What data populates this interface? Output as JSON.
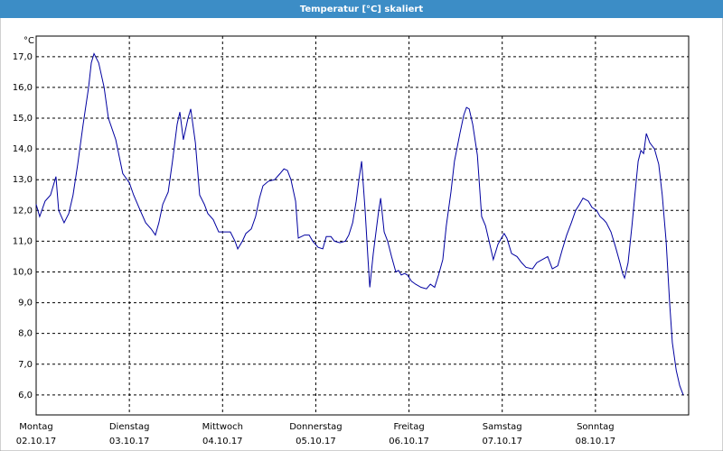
{
  "chart_data": {
    "type": "line",
    "title": "Temperatur [°C] skaliert",
    "y_label": "°C",
    "xlim": [
      0,
      168
    ],
    "ylim": [
      5.35,
      17.67
    ],
    "yticks": [
      {
        "value": 6,
        "label": "6,0"
      },
      {
        "value": 7,
        "label": "7,0"
      },
      {
        "value": 8,
        "label": "8,0"
      },
      {
        "value": 9,
        "label": "9,0"
      },
      {
        "value": 10,
        "label": "10,0"
      },
      {
        "value": 11,
        "label": "11,0"
      },
      {
        "value": 12,
        "label": "12,0"
      },
      {
        "value": 13,
        "label": "13,0"
      },
      {
        "value": 14,
        "label": "14,0"
      },
      {
        "value": 15,
        "label": "15,0"
      },
      {
        "value": 16,
        "label": "16,0"
      },
      {
        "value": 17,
        "label": "17,0"
      }
    ],
    "xticks": [
      {
        "value": 0,
        "label": "Montag"
      },
      {
        "value": 24,
        "label": "Dienstag"
      },
      {
        "value": 48,
        "label": "Mittwoch"
      },
      {
        "value": 72,
        "label": "Donnerstag"
      },
      {
        "value": 96,
        "label": "Freitag"
      },
      {
        "value": 120,
        "label": "Samstag"
      },
      {
        "value": 144,
        "label": "Sonntag"
      }
    ],
    "xtick_dates": [
      "02.10.17",
      "03.10.17",
      "04.10.17",
      "05.10.17",
      "06.10.17",
      "07.10.17",
      "08.10.17"
    ],
    "grid": true,
    "x": [
      0,
      0.9,
      2.3,
      3.7,
      5.1,
      5.8,
      7.2,
      8.4,
      9.5,
      10.7,
      12.1,
      13.5,
      14.2,
      14.9,
      16.1,
      17.5,
      18.6,
      20.5,
      22.3,
      24.0,
      25.1,
      26.8,
      28.2,
      29.6,
      30.7,
      31.6,
      32.6,
      34.0,
      35.1,
      36.3,
      37.0,
      37.9,
      39.1,
      39.8,
      41.0,
      42.1,
      43.3,
      44.2,
      45.6,
      47.0,
      48.2,
      50.0,
      51.2,
      51.9,
      53.1,
      54.0,
      55.4,
      56.5,
      57.5,
      58.4,
      59.8,
      61.4,
      62.8,
      63.8,
      64.7,
      65.6,
      66.8,
      67.5,
      69.1,
      70.3,
      71.2,
      72.6,
      73.8,
      74.7,
      75.9,
      76.8,
      78.2,
      79.6,
      80.5,
      81.5,
      82.4,
      83.1,
      83.8,
      84.7,
      85.4,
      85.9,
      86.8,
      87.7,
      88.2,
      88.7,
      89.6,
      90.5,
      91.5,
      92.6,
      93.3,
      94.0,
      94.9,
      95.6,
      96.6,
      97.7,
      99.1,
      100.5,
      101.5,
      102.6,
      103.6,
      104.7,
      105.6,
      106.8,
      107.7,
      109.1,
      110.1,
      110.8,
      111.5,
      112.4,
      113.6,
      114.7,
      115.7,
      116.8,
      117.7,
      118.9,
      119.8,
      120.5,
      121.2,
      122.4,
      123.8,
      125.0,
      126.1,
      127.8,
      128.9,
      130.3,
      131.7,
      132.9,
      134.3,
      135.4,
      136.6,
      137.8,
      138.9,
      139.9,
      140.8,
      142.2,
      143.1,
      144.3,
      145.2,
      146.1,
      146.8,
      148.0,
      149.2,
      150.3,
      151.0,
      151.5,
      152.4,
      153.4,
      154.3,
      155.0,
      155.7,
      156.4,
      157.1,
      158.0,
      159.2,
      160.3,
      161.2,
      162.2,
      163.1,
      163.8,
      164.8,
      165.7,
      166.6
    ],
    "series": [
      {
        "color": "#0000a0",
        "values": [
          12.2,
          11.8,
          12.3,
          12.5,
          13.1,
          12.0,
          11.6,
          11.9,
          12.5,
          13.5,
          14.8,
          16.0,
          16.8,
          17.1,
          16.8,
          16.0,
          15.0,
          14.3,
          13.2,
          12.9,
          12.5,
          12.0,
          11.6,
          11.4,
          11.2,
          11.6,
          12.2,
          12.6,
          13.6,
          14.8,
          15.2,
          14.3,
          15.0,
          15.3,
          14.2,
          12.5,
          12.2,
          11.9,
          11.7,
          11.3,
          11.3,
          11.3,
          11.0,
          10.75,
          11.0,
          11.25,
          11.4,
          11.8,
          12.4,
          12.8,
          12.95,
          13.0,
          13.2,
          13.35,
          13.3,
          13.0,
          12.3,
          11.1,
          11.2,
          11.2,
          11.0,
          10.8,
          10.75,
          11.15,
          11.15,
          11.0,
          10.95,
          11.0,
          11.2,
          11.6,
          12.3,
          13.0,
          13.6,
          12.0,
          10.5,
          9.5,
          10.6,
          11.5,
          12.0,
          12.4,
          11.3,
          11.0,
          10.5,
          10.0,
          10.05,
          9.9,
          9.95,
          9.9,
          9.7,
          9.6,
          9.5,
          9.45,
          9.6,
          9.5,
          9.9,
          10.4,
          11.5,
          12.6,
          13.6,
          14.5,
          15.1,
          15.35,
          15.3,
          14.8,
          13.8,
          11.8,
          11.5,
          10.9,
          10.4,
          10.9,
          11.1,
          11.25,
          11.1,
          10.6,
          10.5,
          10.3,
          10.15,
          10.1,
          10.3,
          10.4,
          10.5,
          10.1,
          10.2,
          10.7,
          11.2,
          11.6,
          12.0,
          12.2,
          12.4,
          12.3,
          12.1,
          12.0,
          11.8,
          11.7,
          11.6,
          11.3,
          10.8,
          10.3,
          9.95,
          9.8,
          10.3,
          11.5,
          12.7,
          13.6,
          13.95,
          13.85,
          14.5,
          14.2,
          14.0,
          13.5,
          12.5,
          11.0,
          9.0,
          7.7,
          6.8,
          6.3,
          6.0
        ]
      }
    ]
  }
}
